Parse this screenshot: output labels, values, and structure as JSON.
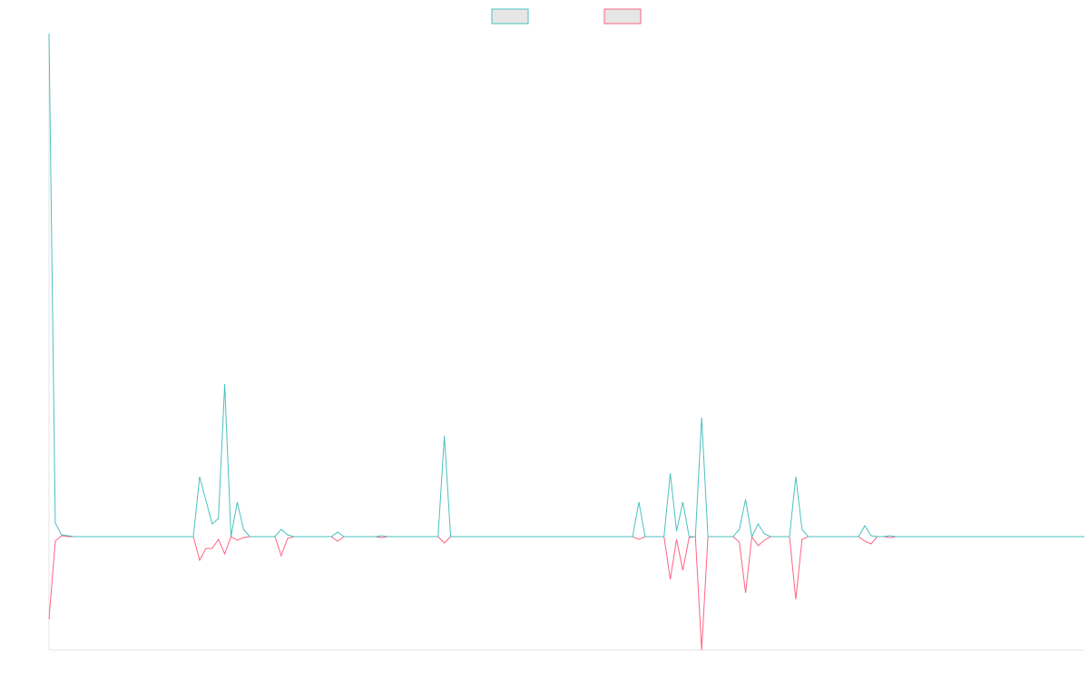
{
  "chart_data": {
    "type": "line",
    "ylim": [
      -125,
      554
    ],
    "legend": "top",
    "series": [
      {
        "color": "#4bc0c0",
        "values": [
          554,
          15,
          2,
          1,
          0,
          0,
          0,
          0,
          0,
          0,
          0,
          0,
          0,
          0,
          0,
          0,
          0,
          0,
          0,
          0,
          0,
          0,
          0,
          0,
          66,
          40,
          14,
          20,
          168,
          0,
          38,
          8,
          0,
          0,
          0,
          0,
          0,
          8,
          2,
          0,
          0,
          0,
          0,
          0,
          0,
          0,
          5,
          0,
          0,
          0,
          0,
          0,
          0,
          1,
          0,
          0,
          0,
          0,
          0,
          0,
          0,
          0,
          0,
          111,
          0,
          0,
          0,
          0,
          0,
          0,
          0,
          0,
          0,
          0,
          0,
          0,
          0,
          0,
          0,
          0,
          0,
          0,
          0,
          0,
          0,
          0,
          0,
          0,
          0,
          0,
          0,
          0,
          0,
          0,
          38,
          0,
          0,
          0,
          0,
          70,
          6,
          38,
          0,
          0,
          131,
          0,
          0,
          0,
          0,
          0,
          8,
          41,
          0,
          14,
          3,
          0,
          0,
          0,
          0,
          66,
          8,
          0,
          0,
          0,
          0,
          0,
          0,
          0,
          0,
          0,
          12,
          1,
          0,
          0,
          1,
          0,
          0,
          0,
          0,
          0,
          0,
          0,
          0,
          0,
          0,
          0,
          0,
          0,
          0,
          0,
          0,
          0,
          0,
          0,
          0,
          0,
          0,
          0,
          0,
          0,
          0,
          0,
          0,
          0,
          0,
          0
        ]
      },
      {
        "color": "#ff6384",
        "values": [
          -91,
          -5,
          1,
          0,
          0,
          0,
          0,
          0,
          0,
          0,
          0,
          0,
          0,
          0,
          0,
          0,
          0,
          0,
          0,
          0,
          0,
          0,
          0,
          0,
          -26,
          -13,
          -13,
          -3,
          -19,
          0,
          -4,
          -1,
          0,
          0,
          0,
          0,
          0,
          -21,
          -2,
          0,
          0,
          0,
          0,
          0,
          0,
          0,
          -5,
          0,
          0,
          0,
          0,
          0,
          0,
          -1,
          0,
          0,
          0,
          0,
          0,
          0,
          0,
          0,
          0,
          -7,
          0,
          0,
          0,
          0,
          0,
          0,
          0,
          0,
          0,
          0,
          0,
          0,
          0,
          0,
          0,
          0,
          0,
          0,
          0,
          0,
          0,
          0,
          0,
          0,
          0,
          0,
          0,
          0,
          0,
          0,
          -3,
          0,
          0,
          0,
          0,
          -47,
          -3,
          -37,
          -1,
          0,
          -125,
          0,
          0,
          0,
          0,
          0,
          -6,
          -62,
          0,
          -10,
          -4,
          0,
          0,
          0,
          0,
          -69,
          -3,
          0,
          0,
          0,
          0,
          0,
          0,
          0,
          0,
          0,
          -5,
          -8,
          0,
          0,
          -1,
          0,
          0,
          0,
          0,
          0,
          0,
          0,
          0,
          0,
          0,
          0,
          0,
          0,
          0,
          0,
          0,
          0,
          0,
          0,
          0,
          0,
          0,
          0,
          0,
          0,
          0,
          0,
          0,
          0,
          0,
          0
        ]
      }
    ]
  }
}
